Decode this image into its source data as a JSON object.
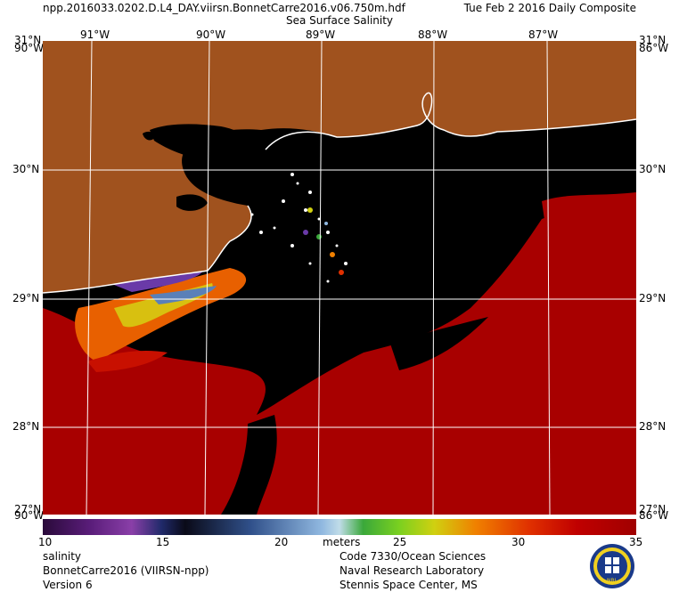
{
  "header": {
    "file": "npp.2016033.0202.D.L4_DAY.viirsn.BonnetCarre2016.v06.750m.hdf",
    "composite": "Tue Feb  2 2016 Daily Composite",
    "product": "Sea Surface Salinity"
  },
  "map": {
    "lon_labels": [
      "91°W",
      "90°W",
      "89°W",
      "88°W",
      "87°W"
    ],
    "lat_labels": [
      "31°N",
      "30°N",
      "29°N",
      "28°N"
    ],
    "corner_labels": {
      "top_left_lat": "31°N",
      "top_left_lon": "90°W",
      "top_right_lat": "31°N",
      "top_right_lon": "86°W",
      "bottom_left_lat": "27°N",
      "bottom_left_lon": "90°W",
      "bottom_right_lat": "27°N",
      "bottom_right_lon": "86°W"
    },
    "colors": {
      "land": "#a0521e",
      "water_nodata": "#000000",
      "high_salinity": "#a80000",
      "grid": "#ffffff",
      "coast": "#ffffff"
    }
  },
  "colorbar": {
    "min": 10,
    "max": 35,
    "ticks": [
      "10",
      "15",
      "20",
      "25",
      "30",
      "35"
    ],
    "units": "meters",
    "colors": [
      "#2a0a3a",
      "#5a1d7a",
      "#8a3fa8",
      "#6a3aa8",
      "#202a6a",
      "#0a0a18",
      "#1a2a5a",
      "#30508a",
      "#5a80b8",
      "#90b8e0",
      "#c0dce8",
      "#3aa83a",
      "#7ad020",
      "#d0d010",
      "#f0c000",
      "#f08000",
      "#e03000",
      "#c00000",
      "#a00000"
    ]
  },
  "footer": {
    "left": [
      "salinity",
      "BonnetCarre2016 (VIIRSN-npp)",
      "Version 6"
    ],
    "right": [
      "Code 7330/Ocean Sciences",
      "Naval Research Laboratory",
      "Stennis Space Center, MS"
    ],
    "seal_text": "NRL"
  }
}
